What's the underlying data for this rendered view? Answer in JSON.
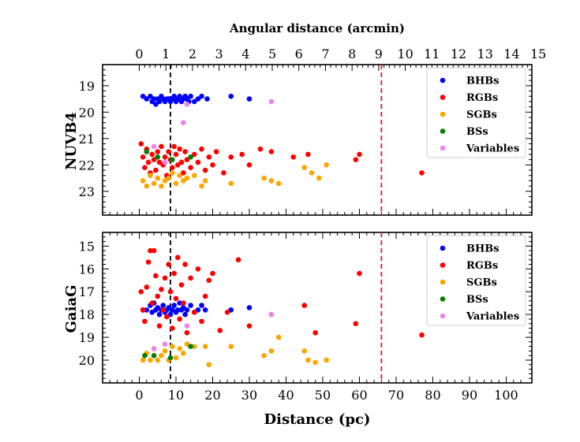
{
  "chart_data": {
    "type": "scatter",
    "top_axis": {
      "label": "Angular distance (arcmin)",
      "tick_labels": [
        "0",
        "1",
        "2",
        "3",
        "4",
        "5",
        "6",
        "7",
        "8",
        "9",
        "10",
        "11",
        "12",
        "13",
        "14",
        "15"
      ]
    },
    "x_axis": {
      "label": "Distance (pc)",
      "tick_labels": [
        "0",
        "10",
        "20",
        "30",
        "40",
        "50",
        "60",
        "70",
        "80",
        "90",
        "100"
      ],
      "range": [
        -10,
        107
      ]
    },
    "reference_lines": [
      {
        "x": 8.5,
        "color": "#000000",
        "style": "dashed"
      },
      {
        "x": 66,
        "color": "#e41a1c",
        "style": "dashed"
      }
    ],
    "colors": {
      "BHBs": "#0000ff",
      "RGBs": "#ff0000",
      "SGBs": "#ffa500",
      "BSs": "#008000",
      "Variables": "#ee82ee"
    },
    "panels": [
      {
        "ylabel": "NUVB4",
        "y_inverted": true,
        "ylim": [
          23.9,
          18.2
        ],
        "y_tick_labels": [
          "19",
          "20",
          "21",
          "22",
          "23"
        ],
        "legend": [
          "BHBs",
          "RGBs",
          "SGBs",
          "BSs",
          "Variables"
        ],
        "series": [
          {
            "name": "BHBs",
            "points": [
              [
                1,
                19.4
              ],
              [
                2,
                19.5
              ],
              [
                3,
                19.4
              ],
              [
                3.5,
                19.6
              ],
              [
                4,
                19.5
              ],
              [
                4.5,
                19.7
              ],
              [
                5,
                19.5
              ],
              [
                5.5,
                19.6
              ],
              [
                6,
                19.4
              ],
              [
                6.5,
                19.5
              ],
              [
                7,
                19.6
              ],
              [
                7.5,
                19.5
              ],
              [
                8,
                19.5
              ],
              [
                8.5,
                19.6
              ],
              [
                9,
                19.5
              ],
              [
                9.5,
                19.4
              ],
              [
                10,
                19.6
              ],
              [
                10.5,
                19.5
              ],
              [
                11,
                19.4
              ],
              [
                11.5,
                19.6
              ],
              [
                12,
                19.5
              ],
              [
                12.5,
                19.4
              ],
              [
                13,
                19.5
              ],
              [
                13.5,
                19.6
              ],
              [
                14,
                19.4
              ],
              [
                15,
                19.6
              ],
              [
                16,
                19.5
              ],
              [
                17,
                19.4
              ],
              [
                18.5,
                19.5
              ],
              [
                25,
                19.4
              ],
              [
                30,
                19.5
              ]
            ]
          },
          {
            "name": "RGBs",
            "points": [
              [
                0.5,
                21.2
              ],
              [
                1,
                21.7
              ],
              [
                1.5,
                22.1
              ],
              [
                2,
                21.4
              ],
              [
                2.5,
                21.9
              ],
              [
                3,
                22.3
              ],
              [
                3.5,
                21.6
              ],
              [
                4,
                21.8
              ],
              [
                4.5,
                22.2
              ],
              [
                5,
                21.5
              ],
              [
                5.5,
                21.9
              ],
              [
                6,
                21.3
              ],
              [
                6.5,
                22.0
              ],
              [
                7,
                21.7
              ],
              [
                7.5,
                22.4
              ],
              [
                8,
                21.5
              ],
              [
                8.5,
                21.8
              ],
              [
                9,
                22.1
              ],
              [
                9.5,
                21.3
              ],
              [
                10,
                21.6
              ],
              [
                10.5,
                22.0
              ],
              [
                11,
                21.4
              ],
              [
                11.5,
                21.9
              ],
              [
                12,
                22.3
              ],
              [
                12.5,
                21.5
              ],
              [
                13,
                21.8
              ],
              [
                14,
                22.1
              ],
              [
                15,
                21.6
              ],
              [
                16,
                21.9
              ],
              [
                17,
                21.4
              ],
              [
                18,
                22.2
              ],
              [
                19,
                21.7
              ],
              [
                20,
                22.0
              ],
              [
                21,
                21.5
              ],
              [
                23,
                22.3
              ],
              [
                25,
                21.7
              ],
              [
                28,
                21.6
              ],
              [
                30,
                22.0
              ],
              [
                33,
                21.4
              ],
              [
                36,
                21.5
              ],
              [
                42,
                21.7
              ],
              [
                46,
                21.6
              ],
              [
                59,
                21.8
              ],
              [
                60,
                21.6
              ],
              [
                77,
                22.3
              ]
            ]
          },
          {
            "name": "SGBs",
            "points": [
              [
                1,
                22.6
              ],
              [
                2,
                22.8
              ],
              [
                3,
                22.4
              ],
              [
                4,
                22.7
              ],
              [
                5,
                22.5
              ],
              [
                6,
                22.8
              ],
              [
                7,
                22.6
              ],
              [
                8,
                22.5
              ],
              [
                9,
                22.3
              ],
              [
                10,
                22.7
              ],
              [
                11,
                22.4
              ],
              [
                12,
                22.6
              ],
              [
                13,
                22.5
              ],
              [
                15,
                22.4
              ],
              [
                17,
                22.8
              ],
              [
                18,
                22.6
              ],
              [
                25,
                22.7
              ],
              [
                34,
                22.5
              ],
              [
                36,
                22.6
              ],
              [
                38,
                22.7
              ],
              [
                45,
                22.1
              ],
              [
                47,
                22.3
              ],
              [
                49,
                22.5
              ],
              [
                51,
                22.0
              ]
            ]
          },
          {
            "name": "BSs",
            "points": [
              [
                2,
                21.5
              ],
              [
                5,
                21.7
              ],
              [
                9,
                21.8
              ],
              [
                14,
                21.7
              ]
            ]
          },
          {
            "name": "Variables",
            "points": [
              [
                4,
                21.3
              ],
              [
                7,
                21.9
              ],
              [
                12,
                20.4
              ],
              [
                13,
                19.7
              ],
              [
                36,
                19.6
              ]
            ]
          }
        ]
      },
      {
        "ylabel": "GaiaG",
        "y_inverted": true,
        "ylim": [
          21.0,
          14.4
        ],
        "y_tick_labels": [
          "15",
          "16",
          "17",
          "18",
          "19",
          "20"
        ],
        "legend": [
          "BHBs",
          "RGBs",
          "SGBs",
          "BSs",
          "Variables"
        ],
        "series": [
          {
            "name": "BHBs",
            "points": [
              [
                1,
                17.8
              ],
              [
                2,
                17.8
              ],
              [
                3,
                17.6
              ],
              [
                3.5,
                17.9
              ],
              [
                4,
                17.5
              ],
              [
                4.5,
                17.8
              ],
              [
                5,
                17.7
              ],
              [
                5.5,
                18.0
              ],
              [
                6,
                17.8
              ],
              [
                6.5,
                17.6
              ],
              [
                7,
                17.9
              ],
              [
                7.5,
                17.8
              ],
              [
                8,
                17.7
              ],
              [
                8.5,
                18.0
              ],
              [
                9,
                17.8
              ],
              [
                9.5,
                17.6
              ],
              [
                10,
                17.9
              ],
              [
                10.5,
                17.8
              ],
              [
                11,
                17.5
              ],
              [
                11.5,
                17.8
              ],
              [
                12,
                17.7
              ],
              [
                12.5,
                18.0
              ],
              [
                13,
                17.8
              ],
              [
                14,
                17.6
              ],
              [
                15,
                17.9
              ],
              [
                16,
                17.8
              ],
              [
                17,
                17.6
              ],
              [
                18,
                17.8
              ],
              [
                25,
                17.8
              ],
              [
                30,
                17.7
              ]
            ]
          },
          {
            "name": "RGBs",
            "points": [
              [
                0.5,
                17.0
              ],
              [
                1,
                17.8
              ],
              [
                1.5,
                18.3
              ],
              [
                2,
                16.8
              ],
              [
                2.5,
                15.7
              ],
              [
                3,
                15.2
              ],
              [
                3.5,
                17.5
              ],
              [
                4,
                15.2
              ],
              [
                4.5,
                16.3
              ],
              [
                5,
                17.2
              ],
              [
                5.5,
                18.5
              ],
              [
                6,
                16.9
              ],
              [
                6.5,
                17.8
              ],
              [
                7,
                16.4
              ],
              [
                7.5,
                18.1
              ],
              [
                8,
                15.8
              ],
              [
                8.5,
                17.0
              ],
              [
                9,
                18.6
              ],
              [
                9.5,
                16.2
              ],
              [
                10,
                17.3
              ],
              [
                10.5,
                15.5
              ],
              [
                11,
                18.2
              ],
              [
                11.5,
                16.7
              ],
              [
                12,
                17.5
              ],
              [
                12.5,
                15.8
              ],
              [
                13,
                18.8
              ],
              [
                14,
                16.4
              ],
              [
                15,
                17.9
              ],
              [
                16,
                16.0
              ],
              [
                17,
                18.3
              ],
              [
                18,
                17.2
              ],
              [
                19,
                16.5
              ],
              [
                20,
                16.2
              ],
              [
                22,
                18.7
              ],
              [
                24,
                17.9
              ],
              [
                27,
                15.6
              ],
              [
                30,
                18.5
              ],
              [
                36,
                18.0
              ],
              [
                45,
                17.6
              ],
              [
                48,
                18.8
              ],
              [
                59,
                18.4
              ],
              [
                60,
                16.2
              ],
              [
                77,
                18.9
              ]
            ]
          },
          {
            "name": "SGBs",
            "points": [
              [
                1,
                20.0
              ],
              [
                2,
                19.7
              ],
              [
                3,
                20.0
              ],
              [
                4,
                19.5
              ],
              [
                5,
                20.0
              ],
              [
                6,
                19.8
              ],
              [
                7,
                19.6
              ],
              [
                8,
                20.0
              ],
              [
                9,
                19.4
              ],
              [
                10,
                19.9
              ],
              [
                11,
                19.5
              ],
              [
                12,
                19.7
              ],
              [
                13,
                19.3
              ],
              [
                15,
                19.4
              ],
              [
                18,
                19.4
              ],
              [
                19,
                20.2
              ],
              [
                25,
                19.4
              ],
              [
                34,
                19.8
              ],
              [
                36,
                19.6
              ],
              [
                38,
                19.0
              ],
              [
                45,
                19.6
              ],
              [
                46,
                20.0
              ],
              [
                48,
                20.1
              ],
              [
                51,
                20.0
              ]
            ]
          },
          {
            "name": "BSs",
            "points": [
              [
                1.5,
                19.8
              ],
              [
                4,
                19.8
              ],
              [
                8.5,
                19.9
              ],
              [
                14,
                19.4
              ]
            ]
          },
          {
            "name": "Variables",
            "points": [
              [
                4,
                19.5
              ],
              [
                7,
                19.3
              ],
              [
                13,
                18.5
              ],
              [
                36,
                18.0
              ]
            ]
          }
        ]
      }
    ]
  }
}
